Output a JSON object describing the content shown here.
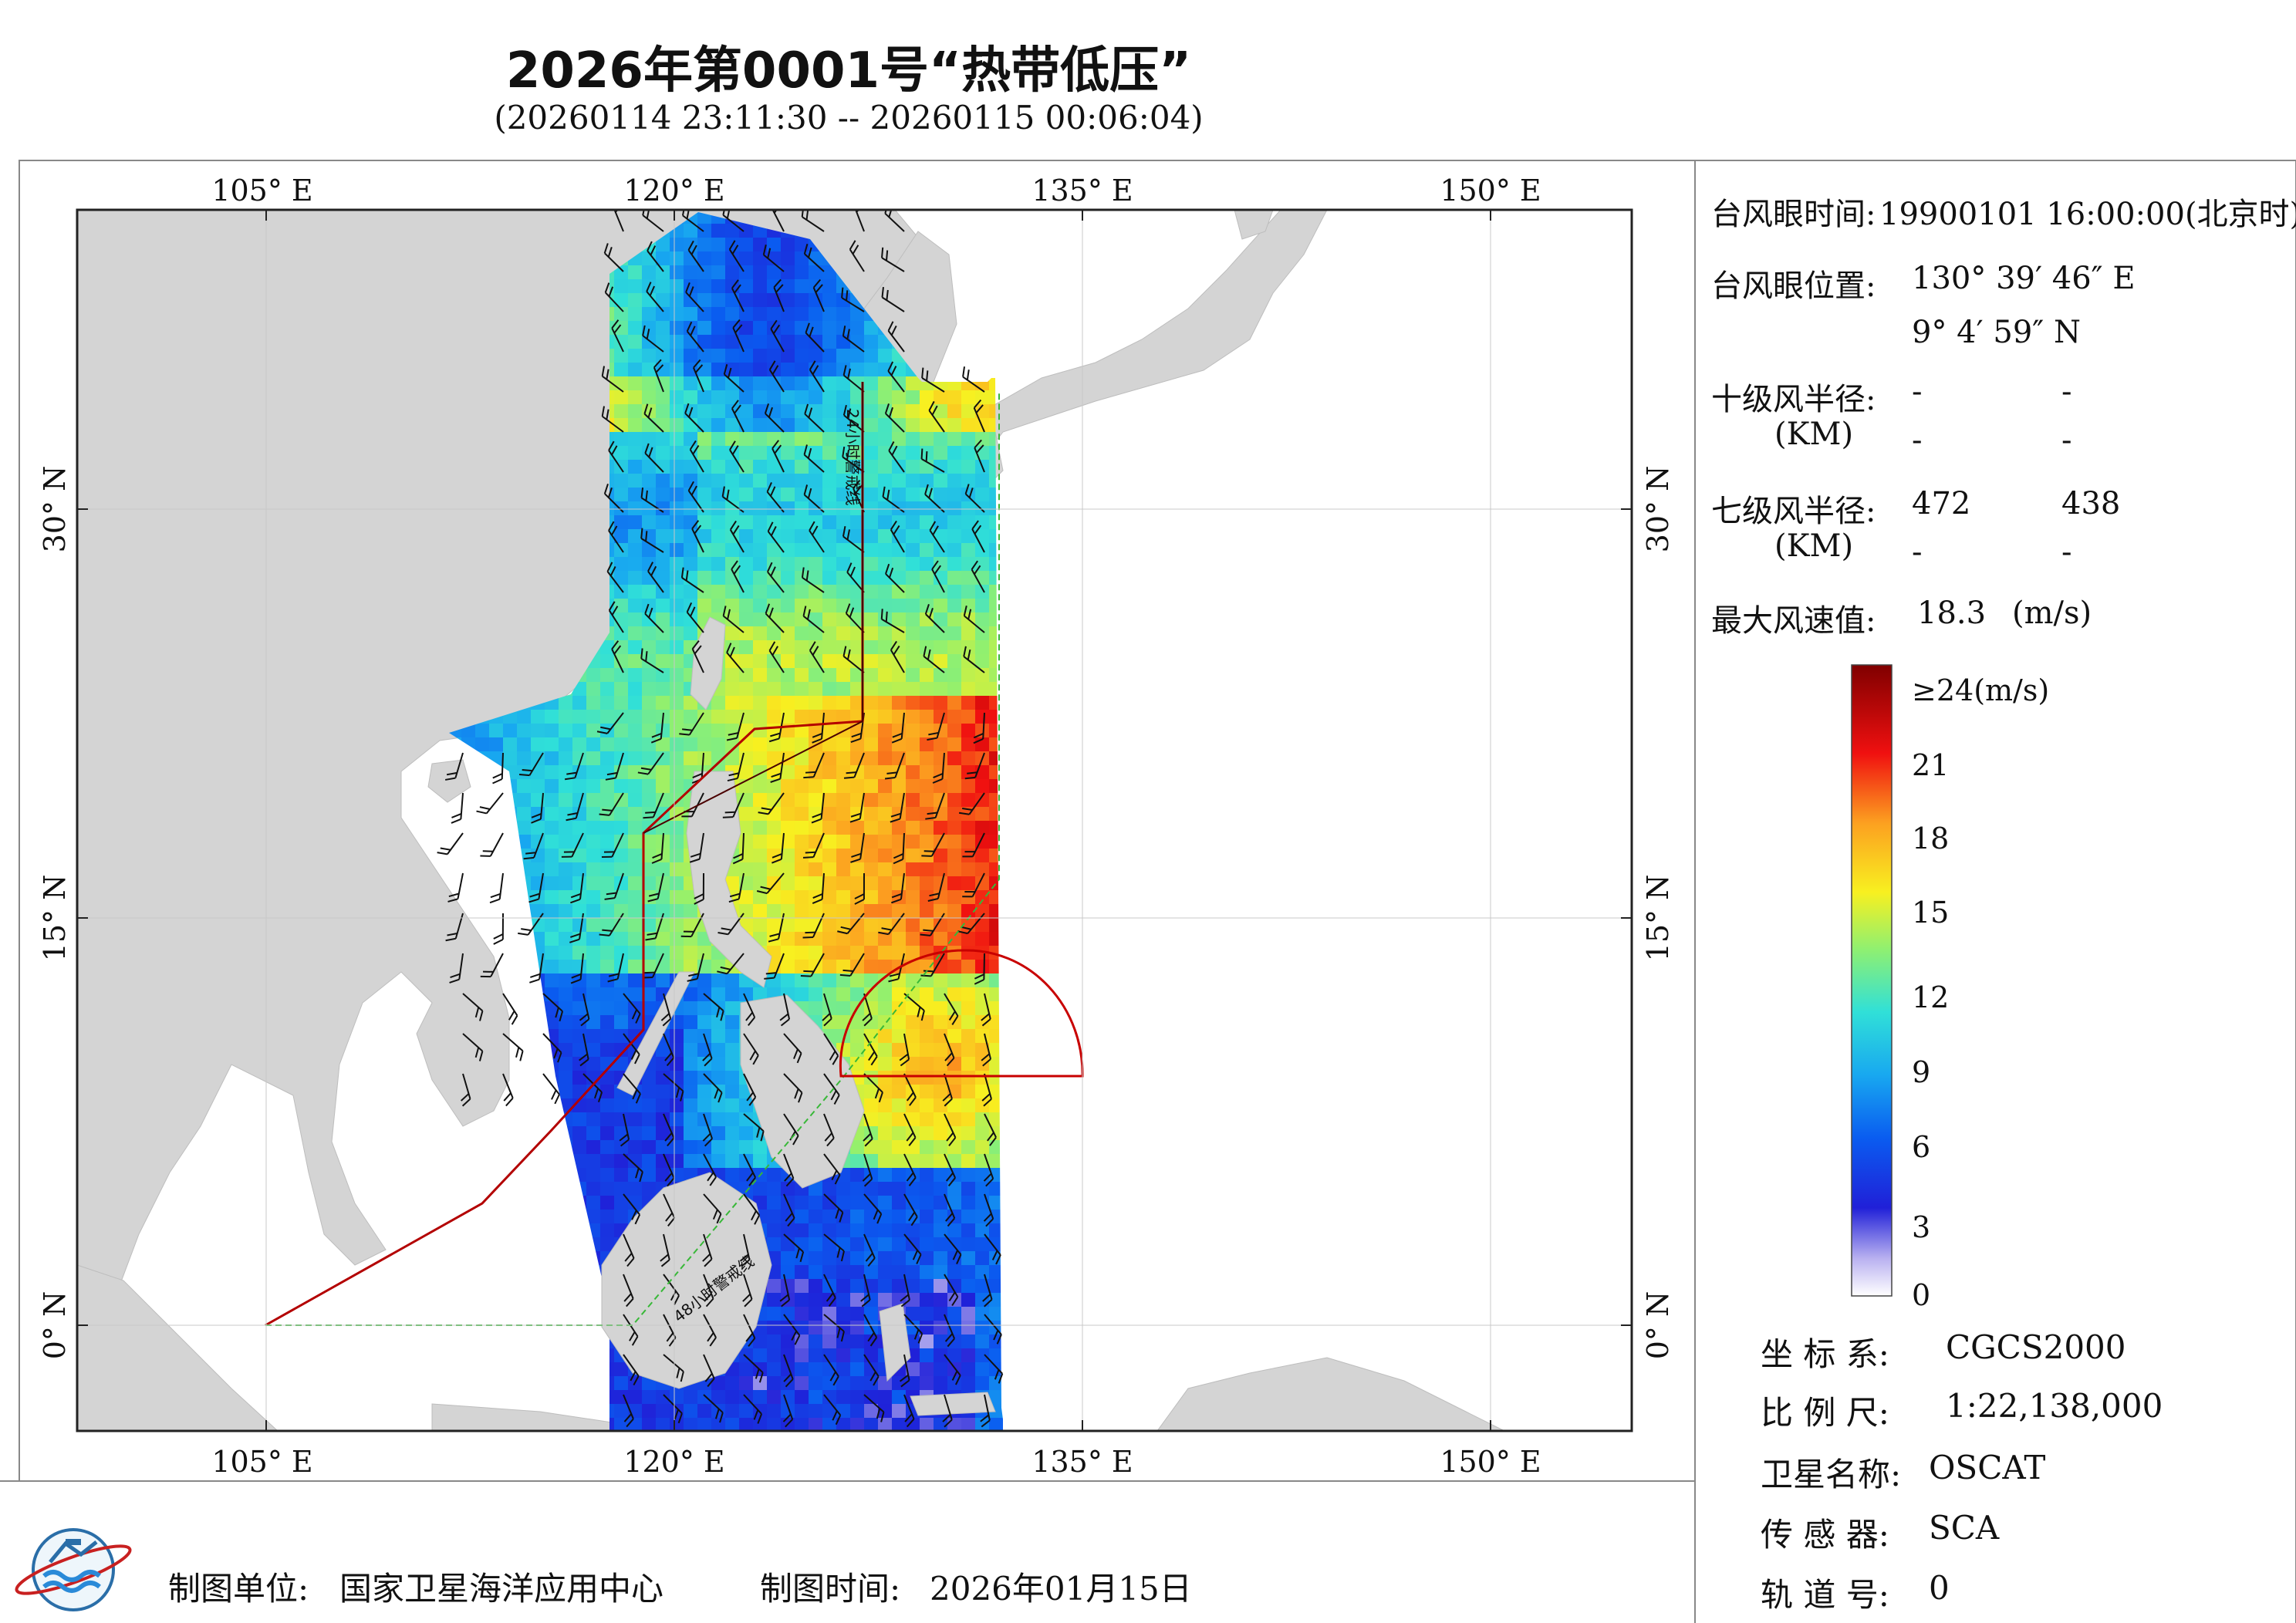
{
  "header": {
    "title": "2026年第0001号“热带低压”",
    "subtitle": "(20260114 23:11:30 -- 20260115 00:06:04)"
  },
  "map": {
    "lon_labels": [
      "105° E",
      "120° E",
      "135° E",
      "150° E"
    ],
    "lat_labels": [
      "30° N",
      "15° N",
      "0° N"
    ],
    "line_label_24h": "24小时警戒线",
    "line_label_48h": "48小时警戒线",
    "colors": {
      "land": "#d4d4d4",
      "warning_24h": "#4a0000",
      "warning_48h": "#b30000",
      "wind_radius": "#c80000",
      "dashed_line": "#38b838"
    }
  },
  "info_panel": {
    "eye_time_label": "台风眼时间:",
    "eye_time_value": "19900101 16:00:00(北京时)",
    "eye_pos_label": "台风眼位置:",
    "eye_lon": "130° 39′ 46″ E",
    "eye_lat": "9° 4′ 59″ N",
    "r10_label": "十级风半径:",
    "r10_unit": "(KM)",
    "r10_values": [
      "-",
      "-",
      "-",
      "-"
    ],
    "r7_label": "七级风半径:",
    "r7_unit": "(KM)",
    "r7_values": [
      "472",
      "438",
      "-",
      "-"
    ],
    "max_wind_label": "最大风速值:",
    "max_wind_value": "18.3",
    "max_wind_unit": "(m/s)"
  },
  "colorbar": {
    "ticks": [
      "≥24(m/s)",
      "21",
      "18",
      "15",
      "12",
      "9",
      "6",
      "3",
      "0"
    ],
    "values": [
      24,
      21,
      18,
      15,
      12,
      9,
      6,
      3,
      0
    ]
  },
  "meta": {
    "coord_label": "坐 标 系:",
    "coord_value": "CGCS2000",
    "scale_label": "比 例 尺:",
    "scale_value": "1:22,138,000",
    "sat_label": "卫星名称:",
    "sat_value": "OSCAT",
    "sensor_label": "传 感 器:",
    "sensor_value": "SCA",
    "orbit_label": "轨 道 号:",
    "orbit_value": "0"
  },
  "footer": {
    "org_label": "制图单位:",
    "org_value": "国家卫星海洋应用中心",
    "date_label": "制图时间:",
    "date_value": "2026年01月15日"
  }
}
